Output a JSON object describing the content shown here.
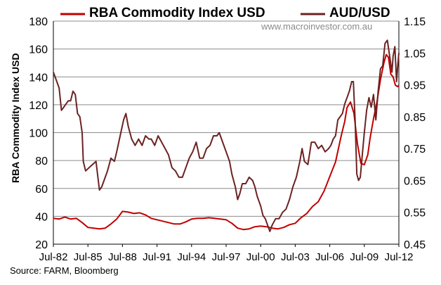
{
  "chart_data": {
    "type": "line",
    "legend": {
      "rba_label": "RBA Commodity Index USD",
      "aud_label": "AUD/USD",
      "placement": "top"
    },
    "watermark": "www.macroinvestor.com.au",
    "source": "Source:  FARM, Bloomberg",
    "ylabel_left": "RBA Commodity Index USD",
    "ylim_left": [
      20,
      180
    ],
    "yticks_left": [
      "20",
      "40",
      "60",
      "80",
      "100",
      "120",
      "140",
      "160",
      "180"
    ],
    "ylim_right": [
      0.45,
      1.15
    ],
    "yticks_right": [
      "0.45",
      "0.55",
      "0.65",
      "0.75",
      "0.85",
      "0.95",
      "1.05",
      "1.15"
    ],
    "xticks": [
      "Jul-82",
      "Jul-85",
      "Jul-88",
      "Jul-91",
      "Jul-94",
      "Jul-97",
      "Jul-00",
      "Jul-03",
      "Jul-06",
      "Jul-09",
      "Jul-12"
    ],
    "xlim": [
      1982.5,
      2012.5
    ],
    "grid": "horizontal",
    "colors": {
      "rba": "#c00000",
      "aud": "#6b2222"
    },
    "series": [
      {
        "name": "RBA Commodity Index USD",
        "axis": "left",
        "color": "#c00000",
        "points": [
          [
            1982.5,
            38.5
          ],
          [
            1983.0,
            38.0
          ],
          [
            1983.5,
            39.5
          ],
          [
            1984.0,
            38.0
          ],
          [
            1984.5,
            38.5
          ],
          [
            1985.0,
            35.5
          ],
          [
            1985.5,
            32.0
          ],
          [
            1986.0,
            31.5
          ],
          [
            1986.5,
            31.0
          ],
          [
            1987.0,
            31.5
          ],
          [
            1987.5,
            34.5
          ],
          [
            1988.0,
            38.0
          ],
          [
            1988.5,
            43.5
          ],
          [
            1989.0,
            43.0
          ],
          [
            1989.5,
            42.0
          ],
          [
            1990.0,
            42.5
          ],
          [
            1990.5,
            41.0
          ],
          [
            1991.0,
            38.5
          ],
          [
            1991.5,
            37.5
          ],
          [
            1992.0,
            36.5
          ],
          [
            1992.5,
            35.5
          ],
          [
            1993.0,
            34.5
          ],
          [
            1993.5,
            34.5
          ],
          [
            1994.0,
            36.0
          ],
          [
            1994.5,
            38.0
          ],
          [
            1995.0,
            38.5
          ],
          [
            1995.5,
            38.5
          ],
          [
            1996.0,
            39.0
          ],
          [
            1996.5,
            38.5
          ],
          [
            1997.0,
            38.0
          ],
          [
            1997.5,
            37.5
          ],
          [
            1998.0,
            35.0
          ],
          [
            1998.5,
            31.5
          ],
          [
            1999.0,
            30.5
          ],
          [
            1999.5,
            31.0
          ],
          [
            2000.0,
            32.5
          ],
          [
            2000.5,
            33.0
          ],
          [
            2001.0,
            32.5
          ],
          [
            2001.5,
            31.5
          ],
          [
            2002.0,
            31.0
          ],
          [
            2002.5,
            32.0
          ],
          [
            2003.0,
            34.0
          ],
          [
            2003.5,
            35.0
          ],
          [
            2004.0,
            39.0
          ],
          [
            2004.5,
            42.0
          ],
          [
            2005.0,
            47.0
          ],
          [
            2005.5,
            50.5
          ],
          [
            2006.0,
            58.0
          ],
          [
            2006.5,
            68.5
          ],
          [
            2007.0,
            79.0
          ],
          [
            2007.5,
            98.0
          ],
          [
            2007.8,
            108.0
          ],
          [
            2008.0,
            118.0
          ],
          [
            2008.3,
            122.0
          ],
          [
            2008.6,
            114.0
          ],
          [
            2008.9,
            92.0
          ],
          [
            2009.2,
            78.0
          ],
          [
            2009.5,
            77.0
          ],
          [
            2009.8,
            84.0
          ],
          [
            2010.0,
            96.0
          ],
          [
            2010.3,
            110.0
          ],
          [
            2010.6,
            122.0
          ],
          [
            2010.9,
            138.0
          ],
          [
            2011.2,
            150.0
          ],
          [
            2011.4,
            156.0
          ],
          [
            2011.6,
            154.0
          ],
          [
            2011.8,
            142.0
          ],
          [
            2012.0,
            140.0
          ],
          [
            2012.2,
            134.0
          ],
          [
            2012.4,
            133.0
          ],
          [
            2012.5,
            134.0
          ]
        ]
      },
      {
        "name": "AUD/USD",
        "axis": "right",
        "color": "#6b2222",
        "points": [
          [
            1982.5,
            0.99
          ],
          [
            1982.8,
            0.96
          ],
          [
            1983.0,
            0.94
          ],
          [
            1983.2,
            0.87
          ],
          [
            1983.4,
            0.88
          ],
          [
            1983.6,
            0.89
          ],
          [
            1983.8,
            0.9
          ],
          [
            1984.0,
            0.9
          ],
          [
            1984.2,
            0.93
          ],
          [
            1984.4,
            0.92
          ],
          [
            1984.6,
            0.86
          ],
          [
            1984.8,
            0.85
          ],
          [
            1985.0,
            0.8
          ],
          [
            1985.1,
            0.71
          ],
          [
            1985.3,
            0.68
          ],
          [
            1985.6,
            0.69
          ],
          [
            1985.9,
            0.7
          ],
          [
            1986.2,
            0.71
          ],
          [
            1986.5,
            0.62
          ],
          [
            1986.7,
            0.63
          ],
          [
            1986.9,
            0.65
          ],
          [
            1987.2,
            0.68
          ],
          [
            1987.5,
            0.72
          ],
          [
            1987.8,
            0.71
          ],
          [
            1988.0,
            0.74
          ],
          [
            1988.3,
            0.79
          ],
          [
            1988.6,
            0.84
          ],
          [
            1988.8,
            0.86
          ],
          [
            1989.0,
            0.82
          ],
          [
            1989.3,
            0.78
          ],
          [
            1989.6,
            0.76
          ],
          [
            1989.9,
            0.78
          ],
          [
            1990.2,
            0.76
          ],
          [
            1990.5,
            0.79
          ],
          [
            1990.8,
            0.78
          ],
          [
            1991.0,
            0.78
          ],
          [
            1991.3,
            0.76
          ],
          [
            1991.6,
            0.79
          ],
          [
            1991.9,
            0.77
          ],
          [
            1992.2,
            0.75
          ],
          [
            1992.5,
            0.73
          ],
          [
            1992.8,
            0.69
          ],
          [
            1993.1,
            0.68
          ],
          [
            1993.4,
            0.66
          ],
          [
            1993.7,
            0.66
          ],
          [
            1994.0,
            0.69
          ],
          [
            1994.3,
            0.72
          ],
          [
            1994.6,
            0.74
          ],
          [
            1994.9,
            0.77
          ],
          [
            1995.2,
            0.72
          ],
          [
            1995.5,
            0.72
          ],
          [
            1995.8,
            0.75
          ],
          [
            1996.1,
            0.76
          ],
          [
            1996.4,
            0.79
          ],
          [
            1996.7,
            0.79
          ],
          [
            1996.9,
            0.8
          ],
          [
            1997.2,
            0.77
          ],
          [
            1997.5,
            0.74
          ],
          [
            1997.8,
            0.71
          ],
          [
            1998.0,
            0.67
          ],
          [
            1998.3,
            0.63
          ],
          [
            1998.5,
            0.59
          ],
          [
            1998.7,
            0.61
          ],
          [
            1998.9,
            0.64
          ],
          [
            1999.2,
            0.64
          ],
          [
            1999.5,
            0.66
          ],
          [
            1999.8,
            0.65
          ],
          [
            2000.0,
            0.63
          ],
          [
            2000.2,
            0.6
          ],
          [
            2000.5,
            0.57
          ],
          [
            2000.7,
            0.54
          ],
          [
            2000.9,
            0.53
          ],
          [
            2001.1,
            0.51
          ],
          [
            2001.3,
            0.49
          ],
          [
            2001.5,
            0.51
          ],
          [
            2001.8,
            0.53
          ],
          [
            2002.1,
            0.53
          ],
          [
            2002.4,
            0.55
          ],
          [
            2002.7,
            0.56
          ],
          [
            2003.0,
            0.59
          ],
          [
            2003.3,
            0.63
          ],
          [
            2003.6,
            0.66
          ],
          [
            2003.9,
            0.71
          ],
          [
            2004.1,
            0.75
          ],
          [
            2004.3,
            0.71
          ],
          [
            2004.6,
            0.7
          ],
          [
            2004.9,
            0.77
          ],
          [
            2005.2,
            0.77
          ],
          [
            2005.5,
            0.75
          ],
          [
            2005.8,
            0.76
          ],
          [
            2006.1,
            0.74
          ],
          [
            2006.4,
            0.75
          ],
          [
            2006.6,
            0.76
          ],
          [
            2006.8,
            0.78
          ],
          [
            2007.0,
            0.79
          ],
          [
            2007.2,
            0.84
          ],
          [
            2007.4,
            0.85
          ],
          [
            2007.6,
            0.86
          ],
          [
            2007.8,
            0.89
          ],
          [
            2008.0,
            0.91
          ],
          [
            2008.2,
            0.93
          ],
          [
            2008.4,
            0.96
          ],
          [
            2008.55,
            0.96
          ],
          [
            2008.7,
            0.84
          ],
          [
            2008.85,
            0.67
          ],
          [
            2009.0,
            0.65
          ],
          [
            2009.15,
            0.66
          ],
          [
            2009.3,
            0.72
          ],
          [
            2009.5,
            0.8
          ],
          [
            2009.7,
            0.87
          ],
          [
            2009.9,
            0.91
          ],
          [
            2010.1,
            0.88
          ],
          [
            2010.3,
            0.92
          ],
          [
            2010.5,
            0.84
          ],
          [
            2010.7,
            0.93
          ],
          [
            2010.9,
            1.0
          ],
          [
            2011.1,
            1.01
          ],
          [
            2011.3,
            1.08
          ],
          [
            2011.5,
            1.09
          ],
          [
            2011.7,
            1.04
          ],
          [
            2011.9,
            0.99
          ],
          [
            2012.0,
            1.04
          ],
          [
            2012.15,
            1.07
          ],
          [
            2012.3,
            0.96
          ],
          [
            2012.4,
            1.01
          ],
          [
            2012.5,
            1.05
          ]
        ]
      }
    ]
  }
}
